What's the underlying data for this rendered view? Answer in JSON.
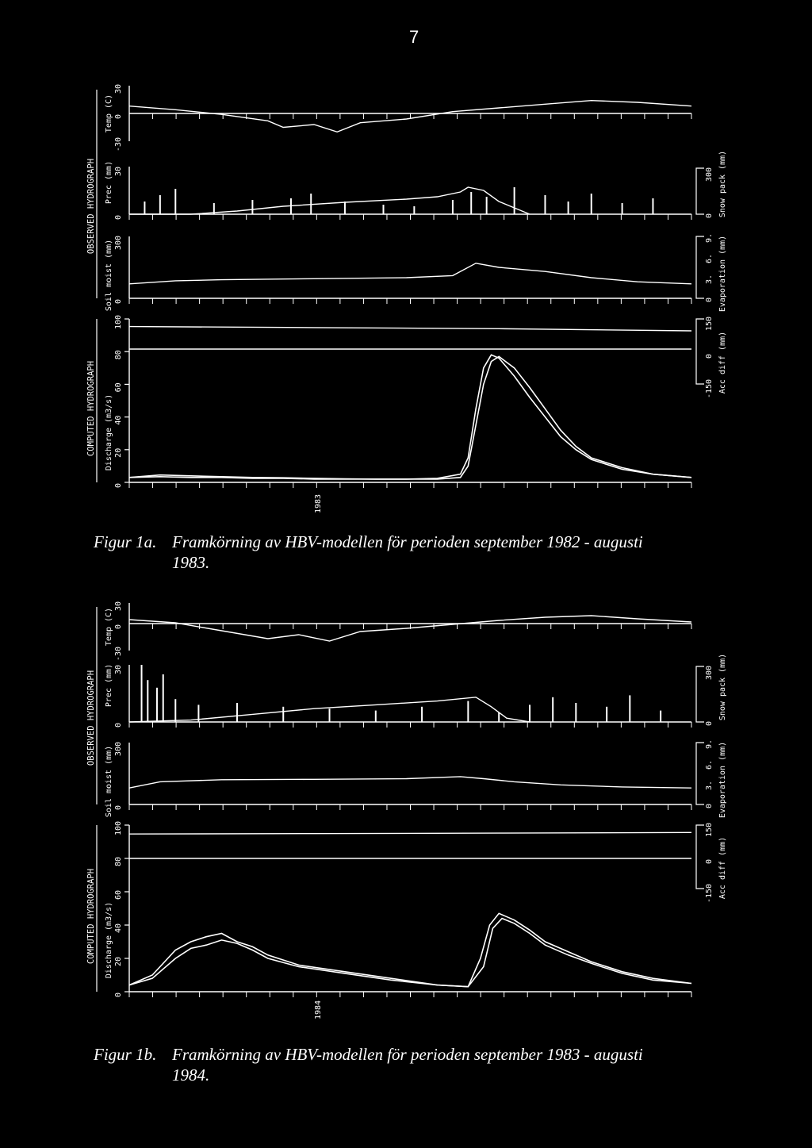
{
  "page_number": "7",
  "colors": {
    "background": "#000000",
    "foreground": "#ffffff"
  },
  "figures": [
    {
      "label": "Figur 1a.",
      "caption_line1": "Framkörning av HBV-modellen för perioden september 1982 - augusti",
      "caption_line2": "1983.",
      "year_label": "1983",
      "group_labels": {
        "observed": "OBSERVED HYDROGRAPH",
        "computed": "COMPUTED HYDROGRAPH"
      },
      "panels": {
        "temp": {
          "label": "Temp (C)",
          "ticks": [
            "-30",
            "0",
            "30"
          ]
        },
        "prec": {
          "label": "Prec (mm)",
          "ticks": [
            "0",
            "30"
          ]
        },
        "soil": {
          "label": "Soil moist (mm)",
          "ticks": [
            "0",
            "300"
          ]
        },
        "discharge": {
          "label": "Discharge (m3/s)",
          "ticks": [
            "0",
            "20",
            "40",
            "60",
            "80",
            "100"
          ]
        }
      },
      "right_labels": {
        "snow": {
          "label": "Snow pack (mm)",
          "ticks": [
            "0",
            "300"
          ]
        },
        "evap": {
          "label": "Evaporation (mm)",
          "ticks": [
            "0",
            "3.",
            "6.",
            "9."
          ]
        },
        "acc": {
          "label": "Acc diff (mm)",
          "ticks": [
            "-150",
            "0",
            "150"
          ]
        }
      }
    },
    {
      "label": "Figur 1b.",
      "caption_line1": "Framkörning av HBV-modellen för perioden september 1983 - augusti",
      "caption_line2": "1984.",
      "year_label": "1984",
      "group_labels": {
        "observed": "OBSERVED HYDROGRAPH",
        "computed": "COMPUTED HYDROGRAPH"
      },
      "panels": {
        "temp": {
          "label": "Temp (C)",
          "ticks": [
            "-30",
            "0",
            "30"
          ]
        },
        "prec": {
          "label": "Prec (mm)",
          "ticks": [
            "0",
            "30"
          ]
        },
        "soil": {
          "label": "Soil moist (mm)",
          "ticks": [
            "0",
            "300"
          ]
        },
        "discharge": {
          "label": "Discharge (m3/s)",
          "ticks": [
            "0",
            "20",
            "40",
            "60",
            "80",
            "100"
          ]
        }
      },
      "right_labels": {
        "snow": {
          "label": "Snow pack (mm)",
          "ticks": [
            "0",
            "300"
          ]
        },
        "evap": {
          "label": "Evaporation (mm)",
          "ticks": [
            "0",
            "3.",
            "6.",
            "9."
          ]
        },
        "acc": {
          "label": "Acc diff (mm)",
          "ticks": [
            "-150",
            "0",
            "150"
          ]
        }
      }
    }
  ],
  "chart_data": [
    {
      "type": "line",
      "title": "",
      "x_unit": "day of hydrological year (Sep 1982 - Aug 1983)",
      "discharge": {
        "ylim": [
          0,
          100
        ],
        "series": [
          {
            "x": [
              0,
              20,
              40,
              60,
              80,
              100,
              120,
              140,
              160,
              180,
              200,
              215,
              220,
              225,
              230,
              235,
              240,
              250,
              260,
              270,
              280,
              290,
              300,
              320,
              340,
              365
            ],
            "y": [
              3,
              4.5,
              4,
              3.5,
              3,
              2.8,
              2.5,
              2.2,
              2,
              2,
              2.5,
              5,
              15,
              45,
              70,
              78,
              76,
              65,
              52,
              40,
              28,
              20,
              14,
              8,
              5,
              3
            ]
          },
          {
            "x": [
              0,
              20,
              40,
              60,
              80,
              100,
              120,
              140,
              160,
              180,
              200,
              215,
              220,
              225,
              230,
              235,
              240,
              250,
              260,
              270,
              280,
              290,
              300,
              320,
              340,
              365
            ],
            "y": [
              3,
              3.5,
              3,
              3,
              2.5,
              2.5,
              2,
              2,
              2,
              2,
              2,
              3,
              10,
              35,
              60,
              74,
              77,
              70,
              58,
              45,
              32,
              22,
              15,
              9,
              5,
              3
            ]
          }
        ]
      },
      "temperature": {
        "ylim": [
          -30,
          30
        ],
        "x": [
          0,
          30,
          60,
          90,
          100,
          120,
          135,
          150,
          180,
          210,
          240,
          270,
          300,
          330,
          365
        ],
        "y": [
          8,
          4,
          -1,
          -8,
          -15,
          -12,
          -20,
          -10,
          -6,
          2,
          6,
          10,
          14,
          12,
          8
        ]
      },
      "precipitation": {
        "ylim": [
          0,
          30
        ],
        "x": [
          10,
          20,
          30,
          55,
          80,
          105,
          118,
          140,
          165,
          185,
          210,
          222,
          232,
          250,
          270,
          285,
          300,
          320,
          340
        ],
        "y": [
          8,
          12,
          16,
          7,
          9,
          10,
          13,
          8,
          6,
          5,
          9,
          14,
          11,
          17,
          12,
          8,
          13,
          7,
          10
        ]
      },
      "snow_pack": {
        "ylim": [
          0,
          300
        ],
        "x": [
          0,
          40,
          70,
          100,
          140,
          180,
          200,
          215,
          220,
          230,
          240,
          260
        ],
        "y": [
          0,
          0,
          20,
          50,
          75,
          95,
          110,
          140,
          170,
          150,
          80,
          0
        ]
      },
      "soil_moisture": {
        "ylim": [
          0,
          300
        ],
        "x": [
          0,
          30,
          60,
          120,
          180,
          210,
          225,
          240,
          270,
          300,
          330,
          365
        ],
        "y": [
          70,
          85,
          90,
          95,
          100,
          110,
          170,
          150,
          130,
          100,
          80,
          70
        ]
      },
      "acc_diff": {
        "ylim": [
          -150,
          150
        ],
        "x": [
          0,
          120,
          240,
          365
        ],
        "y": [
          115,
          110,
          105,
          95
        ]
      }
    },
    {
      "type": "line",
      "title": "",
      "x_unit": "day of hydrological year (Sep 1983 - Aug 1984)",
      "discharge": {
        "ylim": [
          0,
          100
        ],
        "series": [
          {
            "x": [
              0,
              15,
              30,
              40,
              50,
              60,
              70,
              80,
              90,
              110,
              140,
              170,
              200,
              220,
              228,
              234,
              240,
              250,
              260,
              270,
              285,
              300,
              320,
              340,
              365
            ],
            "y": [
              4,
              10,
              25,
              30,
              33,
              35,
              30,
              27,
              22,
              16,
              12,
              8,
              4,
              3,
              20,
              40,
              47,
              43,
              37,
              30,
              24,
              18,
              12,
              8,
              5
            ]
          },
          {
            "x": [
              0,
              15,
              30,
              40,
              50,
              60,
              70,
              80,
              90,
              110,
              140,
              170,
              200,
              220,
              230,
              236,
              242,
              250,
              260,
              270,
              285,
              300,
              320,
              340,
              365
            ],
            "y": [
              4,
              8,
              20,
              26,
              28,
              31,
              29,
              25,
              20,
              15,
              11,
              7,
              4,
              3,
              15,
              38,
              44,
              41,
              35,
              28,
              22,
              17,
              11,
              7,
              5
            ]
          }
        ]
      },
      "temperature": {
        "ylim": [
          -30,
          30
        ],
        "x": [
          0,
          30,
          60,
          90,
          110,
          130,
          150,
          180,
          210,
          240,
          270,
          300,
          330,
          365
        ],
        "y": [
          9,
          5,
          -5,
          -15,
          -10,
          -18,
          -6,
          -2,
          3,
          8,
          12,
          14,
          10,
          6
        ]
      },
      "precipitation": {
        "ylim": [
          0,
          30
        ],
        "x": [
          8,
          12,
          18,
          22,
          30,
          45,
          70,
          100,
          130,
          160,
          190,
          220,
          240,
          260,
          275,
          290,
          310,
          325,
          345
        ],
        "y": [
          30,
          22,
          18,
          25,
          12,
          9,
          10,
          8,
          7,
          6,
          8,
          11,
          5,
          9,
          13,
          10,
          8,
          14,
          6
        ]
      },
      "snow_pack": {
        "ylim": [
          0,
          300
        ],
        "x": [
          0,
          40,
          80,
          120,
          160,
          200,
          225,
          235,
          245,
          260
        ],
        "y": [
          0,
          10,
          40,
          70,
          90,
          110,
          130,
          80,
          20,
          0
        ]
      },
      "soil_moisture": {
        "ylim": [
          0,
          300
        ],
        "x": [
          0,
          20,
          60,
          120,
          180,
          215,
          230,
          250,
          280,
          320,
          365
        ],
        "y": [
          80,
          110,
          120,
          122,
          125,
          135,
          125,
          110,
          95,
          85,
          80
        ]
      },
      "acc_diff": {
        "ylim": [
          -150,
          150
        ],
        "x": [
          0,
          120,
          240,
          365
        ],
        "y": [
          108,
          110,
          112,
          115
        ]
      }
    }
  ]
}
